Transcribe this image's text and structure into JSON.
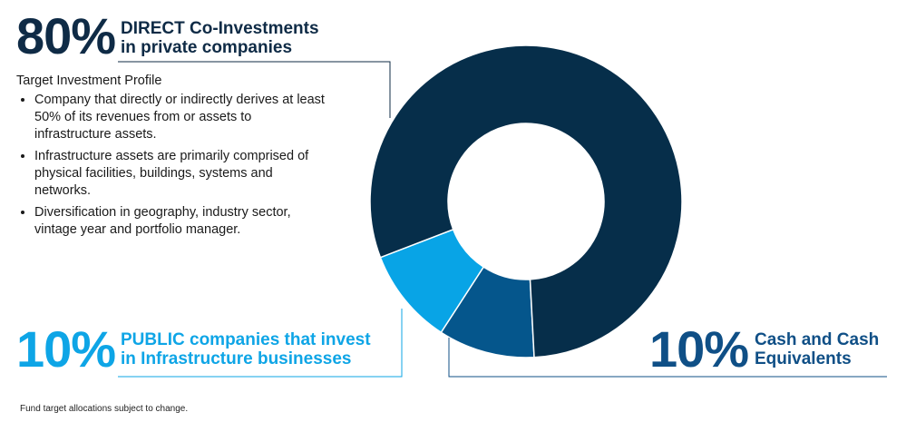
{
  "colors": {
    "direct": "#062e4a",
    "public": "#08a4e6",
    "cash": "#05568c",
    "line_direct": "#0f2b46",
    "line_public": "#0ea5e6",
    "line_cash": "#0f4f86"
  },
  "callouts": {
    "direct": {
      "pct": "80%",
      "line1": "DIRECT Co-Investments",
      "line2": "in private companies"
    },
    "public": {
      "pct": "10%",
      "line1": "PUBLIC companies that invest",
      "line2": "in Infrastructure businesses"
    },
    "cash": {
      "pct": "10%",
      "line1": "Cash and Cash",
      "line2": "Equivalents"
    }
  },
  "profile": {
    "title": "Target Investment Profile",
    "bullets": [
      "Company that directly or indirectly derives at least 50% of its revenues from or assets to infrastructure assets.",
      "Infrastructure assets are primarily comprised of physical facilities, buildings, systems and networks.",
      "Diversification in geography, industry sector, vintage year and portfolio manager."
    ]
  },
  "footnote": "Fund target allocations subject to change.",
  "chart_data": {
    "type": "pie",
    "variant": "donut",
    "categories": [
      "DIRECT Co-Investments",
      "PUBLIC companies",
      "Cash and Cash Equivalents"
    ],
    "values": [
      80,
      10,
      10
    ],
    "title": "",
    "legend": "none"
  }
}
